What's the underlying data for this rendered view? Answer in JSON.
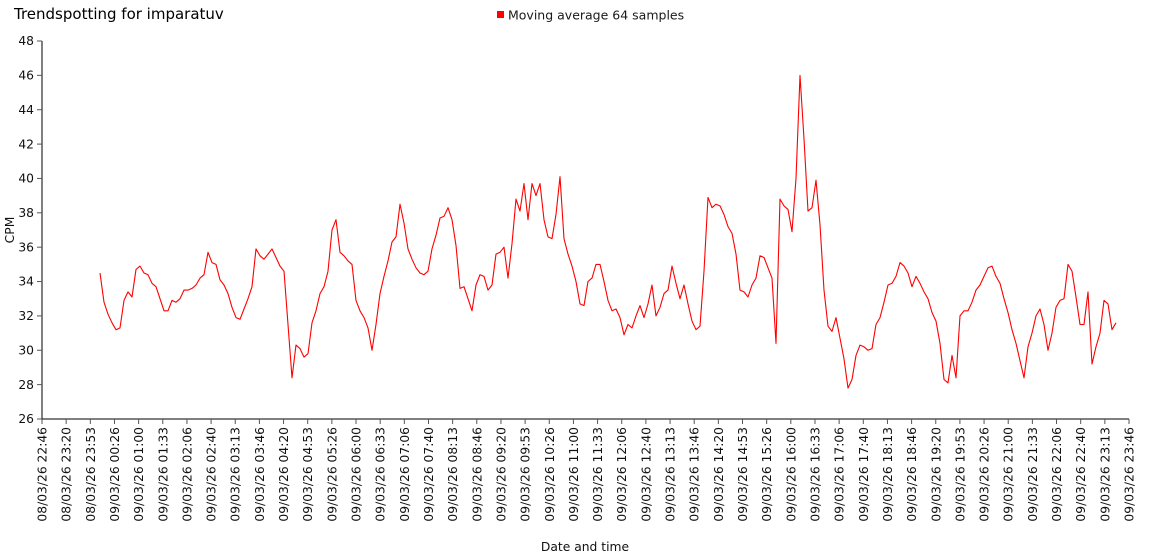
{
  "header": {
    "title": "Trendspotting for imparatuv"
  },
  "legend": {
    "label": "Moving average 64 samples",
    "marker_color": "#ff0000"
  },
  "chart_data": {
    "type": "line",
    "title": "Trendspotting for imparatuv",
    "xlabel": "Date and time",
    "ylabel": "CPM",
    "ylim": [
      26,
      48
    ],
    "y_ticks": [
      26,
      28,
      30,
      32,
      34,
      36,
      38,
      40,
      42,
      44,
      46,
      48
    ],
    "grid": false,
    "legend_position": "top-center",
    "x_tick_labels": [
      "08/03/26 22:46",
      "08/03/26 23:20",
      "08/03/26 23:53",
      "09/03/26 00:26",
      "09/03/26 01:00",
      "09/03/26 01:33",
      "09/03/26 02:06",
      "09/03/26 02:40",
      "09/03/26 03:13",
      "09/03/26 03:46",
      "09/03/26 04:20",
      "09/03/26 04:53",
      "09/03/26 05:26",
      "09/03/26 06:00",
      "09/03/26 06:33",
      "09/03/26 07:06",
      "09/03/26 07:40",
      "09/03/26 08:13",
      "09/03/26 08:46",
      "09/03/26 09:20",
      "09/03/26 09:53",
      "09/03/26 10:26",
      "09/03/26 11:00",
      "09/03/26 11:33",
      "09/03/26 12:06",
      "09/03/26 12:40",
      "09/03/26 13:13",
      "09/03/26 13:46",
      "09/03/26 14:20",
      "09/03/26 14:53",
      "09/03/26 15:26",
      "09/03/26 16:00",
      "09/03/26 16:33",
      "09/03/26 17:06",
      "09/03/26 17:40",
      "09/03/26 18:13",
      "09/03/26 18:46",
      "09/03/26 19:20",
      "09/03/26 19:53",
      "09/03/26 20:26",
      "09/03/26 21:00",
      "09/03/26 21:33",
      "09/03/26 22:06",
      "09/03/26 22:40",
      "09/03/26 23:13",
      "09/03/26 23:46"
    ],
    "series": [
      {
        "name": "Moving average 64 samples",
        "color": "#ff0000",
        "x_start_tick": 2.4,
        "x_end_tick": 44.46,
        "values": [
          34.5,
          32.8,
          32.1,
          31.6,
          31.2,
          31.3,
          32.9,
          33.4,
          33.1,
          34.7,
          34.9,
          34.5,
          34.4,
          33.9,
          33.7,
          33.0,
          32.3,
          32.3,
          32.9,
          32.8,
          33.0,
          33.5,
          33.5,
          33.6,
          33.8,
          34.2,
          34.4,
          35.7,
          35.1,
          35.0,
          34.1,
          33.8,
          33.3,
          32.5,
          31.9,
          31.8,
          32.4,
          33.0,
          33.7,
          35.9,
          35.5,
          35.3,
          35.6,
          35.9,
          35.4,
          34.9,
          34.6,
          31.5,
          28.4,
          30.3,
          30.1,
          29.6,
          29.8,
          31.6,
          32.3,
          33.3,
          33.7,
          34.6,
          37.0,
          37.6,
          35.7,
          35.5,
          35.2,
          35.0,
          32.9,
          32.3,
          31.9,
          31.3,
          30.0,
          31.5,
          33.3,
          34.3,
          35.2,
          36.3,
          36.6,
          38.5,
          37.4,
          35.9,
          35.3,
          34.8,
          34.5,
          34.4,
          34.6,
          35.9,
          36.7,
          37.7,
          37.8,
          38.3,
          37.6,
          36.1,
          33.6,
          33.7,
          33.0,
          32.3,
          33.8,
          34.4,
          34.3,
          33.5,
          33.8,
          35.6,
          35.7,
          36.0,
          34.2,
          36.2,
          38.8,
          38.1,
          39.7,
          37.6,
          39.7,
          39.0,
          39.7,
          37.6,
          36.6,
          36.5,
          37.9,
          40.1,
          36.5,
          35.6,
          34.9,
          34.0,
          32.7,
          32.6,
          34.0,
          34.2,
          35.0,
          35.0,
          34.0,
          32.9,
          32.3,
          32.4,
          31.9,
          30.9,
          31.5,
          31.3,
          32.0,
          32.6,
          31.9,
          32.7,
          33.8,
          32.0,
          32.5,
          33.3,
          33.5,
          34.9,
          33.9,
          33.0,
          33.8,
          32.7,
          31.7,
          31.2,
          31.4,
          34.6,
          38.9,
          38.3,
          38.5,
          38.4,
          37.9,
          37.2,
          36.8,
          35.6,
          33.5,
          33.4,
          33.1,
          33.8,
          34.2,
          35.5,
          35.4,
          34.8,
          34.2,
          30.4,
          38.8,
          38.4,
          38.2,
          36.9,
          40.0,
          46.0,
          42.3,
          38.1,
          38.3,
          39.9,
          37.3,
          33.5,
          31.4,
          31.1,
          31.9,
          30.7,
          29.5,
          27.8,
          28.3,
          29.7,
          30.3,
          30.2,
          30.0,
          30.1,
          31.5,
          31.9,
          32.8,
          33.8,
          33.9,
          34.3,
          35.1,
          34.9,
          34.5,
          33.7,
          34.3,
          33.9,
          33.4,
          33.0,
          32.2,
          31.7,
          30.4,
          28.3,
          28.1,
          29.7,
          28.4,
          32.0,
          32.3,
          32.3,
          32.8,
          33.5,
          33.8,
          34.3,
          34.8,
          34.9,
          34.3,
          33.9,
          33.0,
          32.2,
          31.2,
          30.4,
          29.4,
          28.4,
          30.2,
          31.0,
          32.0,
          32.4,
          31.5,
          30.0,
          31.0,
          32.5,
          32.9,
          33.0,
          35.0,
          34.6,
          33.1,
          31.5,
          31.5,
          33.4,
          29.2,
          30.2,
          31.0,
          32.9,
          32.7,
          31.2,
          31.6
        ]
      }
    ]
  }
}
